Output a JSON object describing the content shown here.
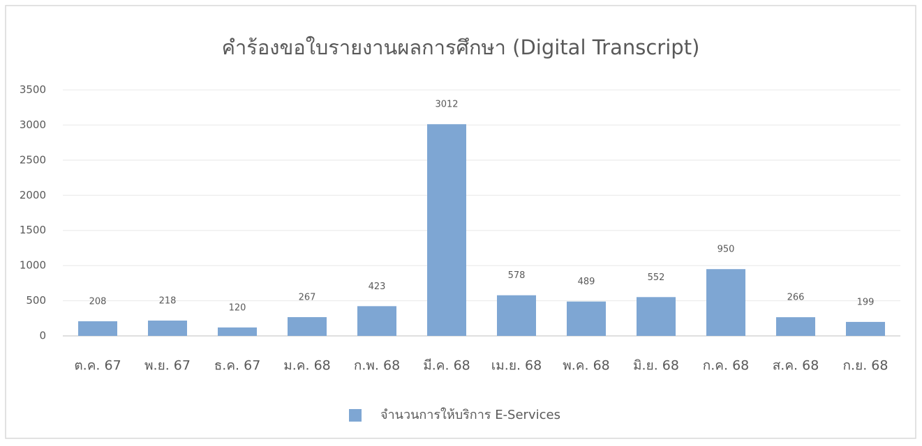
{
  "chart_data": {
    "type": "bar",
    "title": "คำร้องขอใบรายงานผลการศึกษา (Digital Transcript)",
    "categories": [
      "ต.ค. 67",
      "พ.ย. 67",
      "ธ.ค. 67",
      "ม.ค. 68",
      "ก.พ. 68",
      "มี.ค. 68",
      "เม.ย. 68",
      "พ.ค. 68",
      "มิ.ย. 68",
      "ก.ค. 68",
      "ส.ค. 68",
      "ก.ย. 68"
    ],
    "series": [
      {
        "name": "จำนวนการให้บริการ E-Services",
        "color": "#7ea6d3",
        "values": [
          208,
          218,
          120,
          267,
          423,
          3012,
          578,
          489,
          552,
          950,
          266,
          199
        ]
      }
    ],
    "ylim": [
      0,
      3500
    ],
    "yticks": [
      0,
      500,
      1000,
      1500,
      2000,
      2500,
      3000,
      3500
    ],
    "grid": true,
    "legend": "bottom"
  }
}
